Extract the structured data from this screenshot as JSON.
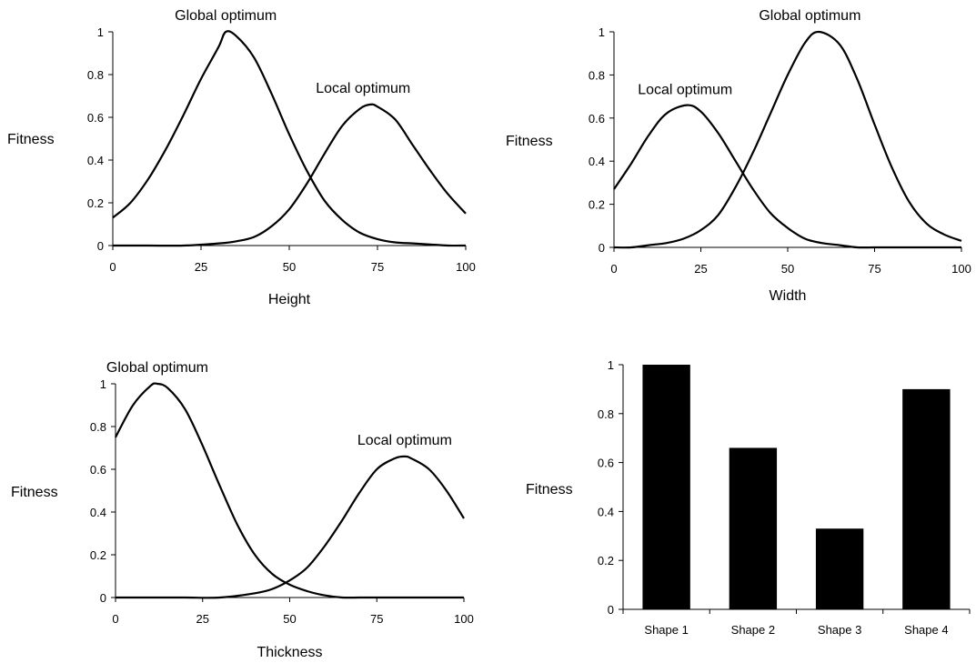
{
  "chart_data": [
    {
      "type": "line",
      "xlabel": "Height",
      "ylabel": "Fitness",
      "xlim": [
        0,
        100
      ],
      "ylim": [
        0,
        1
      ],
      "x_ticks": [
        "0",
        "25",
        "50",
        "75",
        "100"
      ],
      "y_ticks": [
        "0",
        "0.2",
        "0.4",
        "0.6",
        "0.8",
        "1"
      ],
      "grid": false,
      "series": [
        {
          "x": [
            0,
            5,
            10,
            15,
            20,
            25,
            30,
            32,
            35,
            40,
            45,
            50,
            55,
            60,
            65,
            70,
            75,
            80,
            85,
            90,
            95,
            100
          ],
          "y": [
            0.13,
            0.2,
            0.31,
            0.45,
            0.61,
            0.78,
            0.93,
            1.0,
            0.98,
            0.88,
            0.71,
            0.52,
            0.35,
            0.21,
            0.12,
            0.06,
            0.03,
            0.015,
            0.01,
            0.005,
            0.0,
            0.0
          ]
        },
        {
          "x": [
            0,
            10,
            20,
            30,
            35,
            40,
            45,
            50,
            55,
            60,
            65,
            70,
            73,
            75,
            80,
            85,
            90,
            95,
            100
          ],
          "y": [
            0.0,
            0.0,
            0.0,
            0.01,
            0.02,
            0.04,
            0.09,
            0.17,
            0.29,
            0.43,
            0.56,
            0.64,
            0.66,
            0.65,
            0.59,
            0.47,
            0.35,
            0.24,
            0.15
          ]
        }
      ],
      "annotations": [
        {
          "text": "Global optimum",
          "x": 32,
          "y": 1.0
        },
        {
          "text": "Local optimum",
          "x": 73,
          "y": 0.66
        }
      ]
    },
    {
      "type": "line",
      "xlabel": "Width",
      "ylabel": "Fitness",
      "xlim": [
        0,
        100
      ],
      "ylim": [
        0,
        1
      ],
      "x_ticks": [
        "0",
        "25",
        "50",
        "75",
        "100"
      ],
      "y_ticks": [
        "0",
        "0.2",
        "0.4",
        "0.6",
        "0.8",
        "1"
      ],
      "grid": false,
      "series": [
        {
          "x": [
            0,
            5,
            10,
            15,
            21,
            25,
            30,
            35,
            40,
            45,
            50,
            55,
            60,
            65,
            70,
            75,
            80,
            85,
            90,
            95,
            100
          ],
          "y": [
            0.27,
            0.39,
            0.52,
            0.62,
            0.66,
            0.63,
            0.53,
            0.4,
            0.27,
            0.16,
            0.09,
            0.04,
            0.02,
            0.01,
            0.0,
            0.0,
            0.0,
            0.0,
            0.0,
            0.0,
            0.0
          ]
        },
        {
          "x": [
            0,
            5,
            10,
            15,
            20,
            25,
            30,
            35,
            40,
            45,
            50,
            55,
            59,
            65,
            70,
            75,
            80,
            85,
            90,
            95,
            100
          ],
          "y": [
            0.0,
            0.0,
            0.01,
            0.02,
            0.04,
            0.08,
            0.15,
            0.28,
            0.44,
            0.62,
            0.8,
            0.95,
            1.0,
            0.94,
            0.78,
            0.57,
            0.37,
            0.21,
            0.11,
            0.06,
            0.03
          ]
        }
      ],
      "annotations": [
        {
          "text": "Global optimum",
          "x": 59,
          "y": 1.0
        },
        {
          "text": "Local optimum",
          "x": 21,
          "y": 0.66
        }
      ]
    },
    {
      "type": "line",
      "xlabel": "Thickness",
      "ylabel": "Fitness",
      "xlim": [
        0,
        100
      ],
      "ylim": [
        0,
        1
      ],
      "x_ticks": [
        "0",
        "25",
        "50",
        "75",
        "100"
      ],
      "y_ticks": [
        "0",
        "0.2",
        "0.4",
        "0.6",
        "0.8",
        "1"
      ],
      "grid": false,
      "series": [
        {
          "x": [
            0,
            5,
            10,
            12,
            15,
            20,
            25,
            30,
            35,
            40,
            45,
            50,
            55,
            60,
            65,
            70,
            75,
            80,
            90,
            100
          ],
          "y": [
            0.75,
            0.9,
            0.99,
            1.0,
            0.98,
            0.88,
            0.71,
            0.52,
            0.34,
            0.2,
            0.11,
            0.06,
            0.03,
            0.01,
            0.0,
            0.0,
            0.0,
            0.0,
            0.0,
            0.0
          ]
        },
        {
          "x": [
            0,
            10,
            20,
            30,
            40,
            45,
            50,
            55,
            60,
            65,
            70,
            75,
            80,
            83,
            85,
            90,
            95,
            100
          ],
          "y": [
            0.0,
            0.0,
            0.0,
            0.0,
            0.02,
            0.04,
            0.08,
            0.14,
            0.24,
            0.36,
            0.49,
            0.6,
            0.65,
            0.66,
            0.65,
            0.6,
            0.5,
            0.37
          ]
        }
      ],
      "annotations": [
        {
          "text": "Global optimum",
          "x": 12,
          "y": 1.0
        },
        {
          "text": "Local optimum",
          "x": 83,
          "y": 0.66
        }
      ]
    },
    {
      "type": "bar",
      "ylabel": "Fitness",
      "categories": [
        "Shape 1",
        "Shape 2",
        "Shape 3",
        "Shape 4"
      ],
      "values": [
        1.0,
        0.66,
        0.33,
        0.9
      ],
      "ylim": [
        0,
        1
      ],
      "y_ticks": [
        "0",
        "0.2",
        "0.4",
        "0.6",
        "0.8",
        "1"
      ],
      "grid": false,
      "color": "#000000"
    }
  ]
}
